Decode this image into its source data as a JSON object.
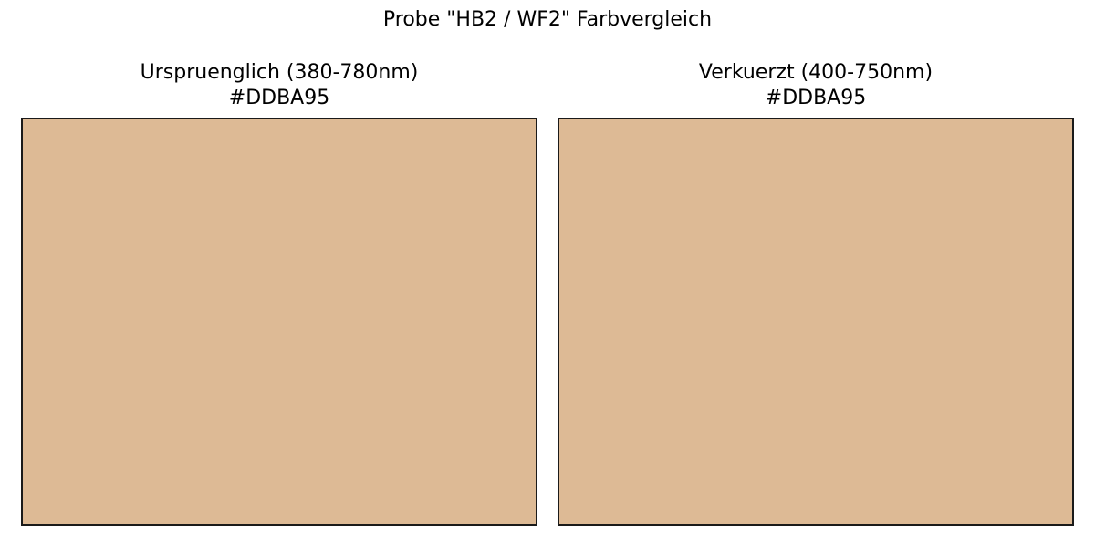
{
  "chart_data": {
    "type": "color-swatch-comparison",
    "title": "Probe \"HB2 / WF2\" Farbvergleich",
    "panels": [
      {
        "title": "Urspruenglich (380-780nm)",
        "hex": "#DDBA95",
        "color": "#DDBA95"
      },
      {
        "title": "Verkuerzt (400-750nm)",
        "hex": "#DDBA95",
        "color": "#DDBA95"
      }
    ],
    "grid": false,
    "axes_visible": false
  }
}
